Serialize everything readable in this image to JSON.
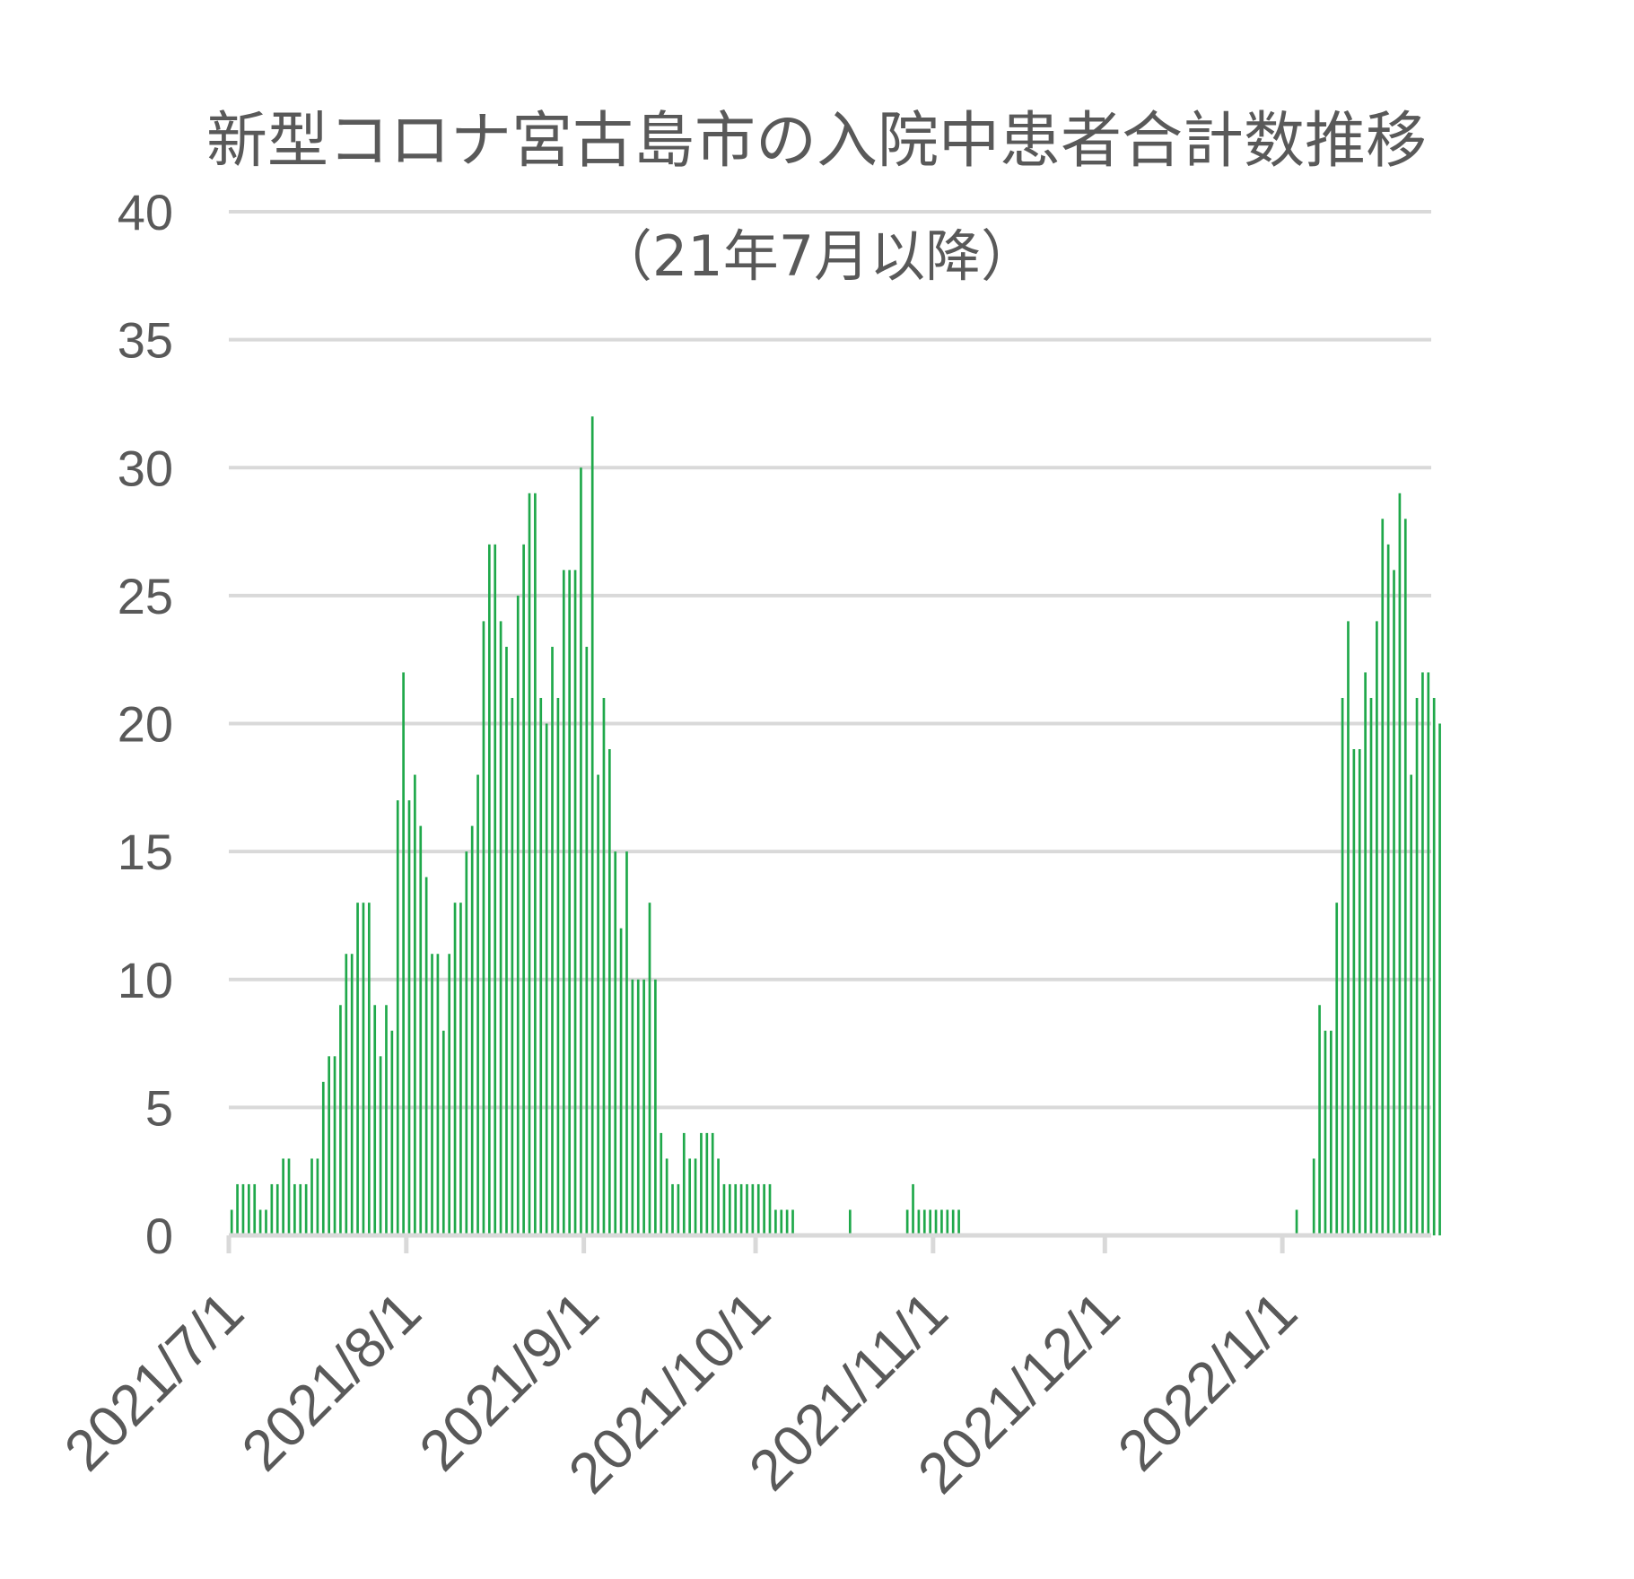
{
  "chart_data": {
    "type": "bar",
    "title": "新型コロナ宮古島市の入院中患者合計数推移",
    "subtitle": "（21年7月以降）",
    "xlabel": "",
    "ylabel": "",
    "ylim": [
      0,
      40
    ],
    "yticks": [
      "0",
      "5",
      "10",
      "15",
      "20",
      "25",
      "30",
      "35",
      "40"
    ],
    "xtick_labels": [
      "2021/7/1",
      "2021/8/1",
      "2021/9/1",
      "2021/10/1",
      "2021/11/1",
      "2021/12/1",
      "2022/1/1"
    ],
    "grid": true,
    "legend": "none",
    "bar_color": "#1fa84a",
    "grid_color": "#d9d9d9",
    "x_start": "2021/7/1",
    "x_end": "2022/1/26",
    "values": [
      1,
      2,
      2,
      2,
      2,
      1,
      1,
      2,
      2,
      3,
      3,
      2,
      2,
      2,
      3,
      3,
      6,
      7,
      7,
      9,
      11,
      11,
      13,
      13,
      13,
      9,
      7,
      9,
      8,
      17,
      22,
      17,
      18,
      16,
      14,
      11,
      11,
      8,
      11,
      13,
      13,
      15,
      16,
      18,
      24,
      27,
      27,
      24,
      23,
      21,
      25,
      27,
      29,
      29,
      21,
      20,
      23,
      21,
      26,
      26,
      26,
      30,
      23,
      32,
      18,
      21,
      19,
      15,
      12,
      15,
      10,
      10,
      10,
      13,
      10,
      4,
      3,
      2,
      2,
      4,
      3,
      3,
      4,
      4,
      4,
      3,
      2,
      2,
      2,
      2,
      2,
      2,
      2,
      2,
      2,
      1,
      1,
      1,
      1,
      0,
      0,
      0,
      0,
      0,
      0,
      0,
      0,
      0,
      1,
      0,
      0,
      0,
      0,
      0,
      0,
      0,
      0,
      0,
      1,
      2,
      1,
      1,
      1,
      1,
      1,
      1,
      1,
      1,
      0,
      0,
      0,
      0,
      0,
      0,
      0,
      0,
      0,
      0,
      0,
      0,
      0,
      0,
      0,
      0,
      0,
      0,
      0,
      0,
      0,
      0,
      0,
      0,
      0,
      0,
      0,
      0,
      0,
      0,
      0,
      0,
      0,
      0,
      0,
      0,
      0,
      0,
      0,
      0,
      0,
      0,
      0,
      0,
      0,
      0,
      0,
      0,
      0,
      0,
      0,
      0,
      0,
      0,
      0,
      0,
      0,
      0,
      1,
      0,
      0,
      3,
      9,
      8,
      8,
      13,
      21,
      24,
      19,
      19,
      22,
      21,
      24,
      28,
      27,
      26,
      29,
      28,
      18,
      21,
      22,
      22,
      21,
      20
    ]
  }
}
